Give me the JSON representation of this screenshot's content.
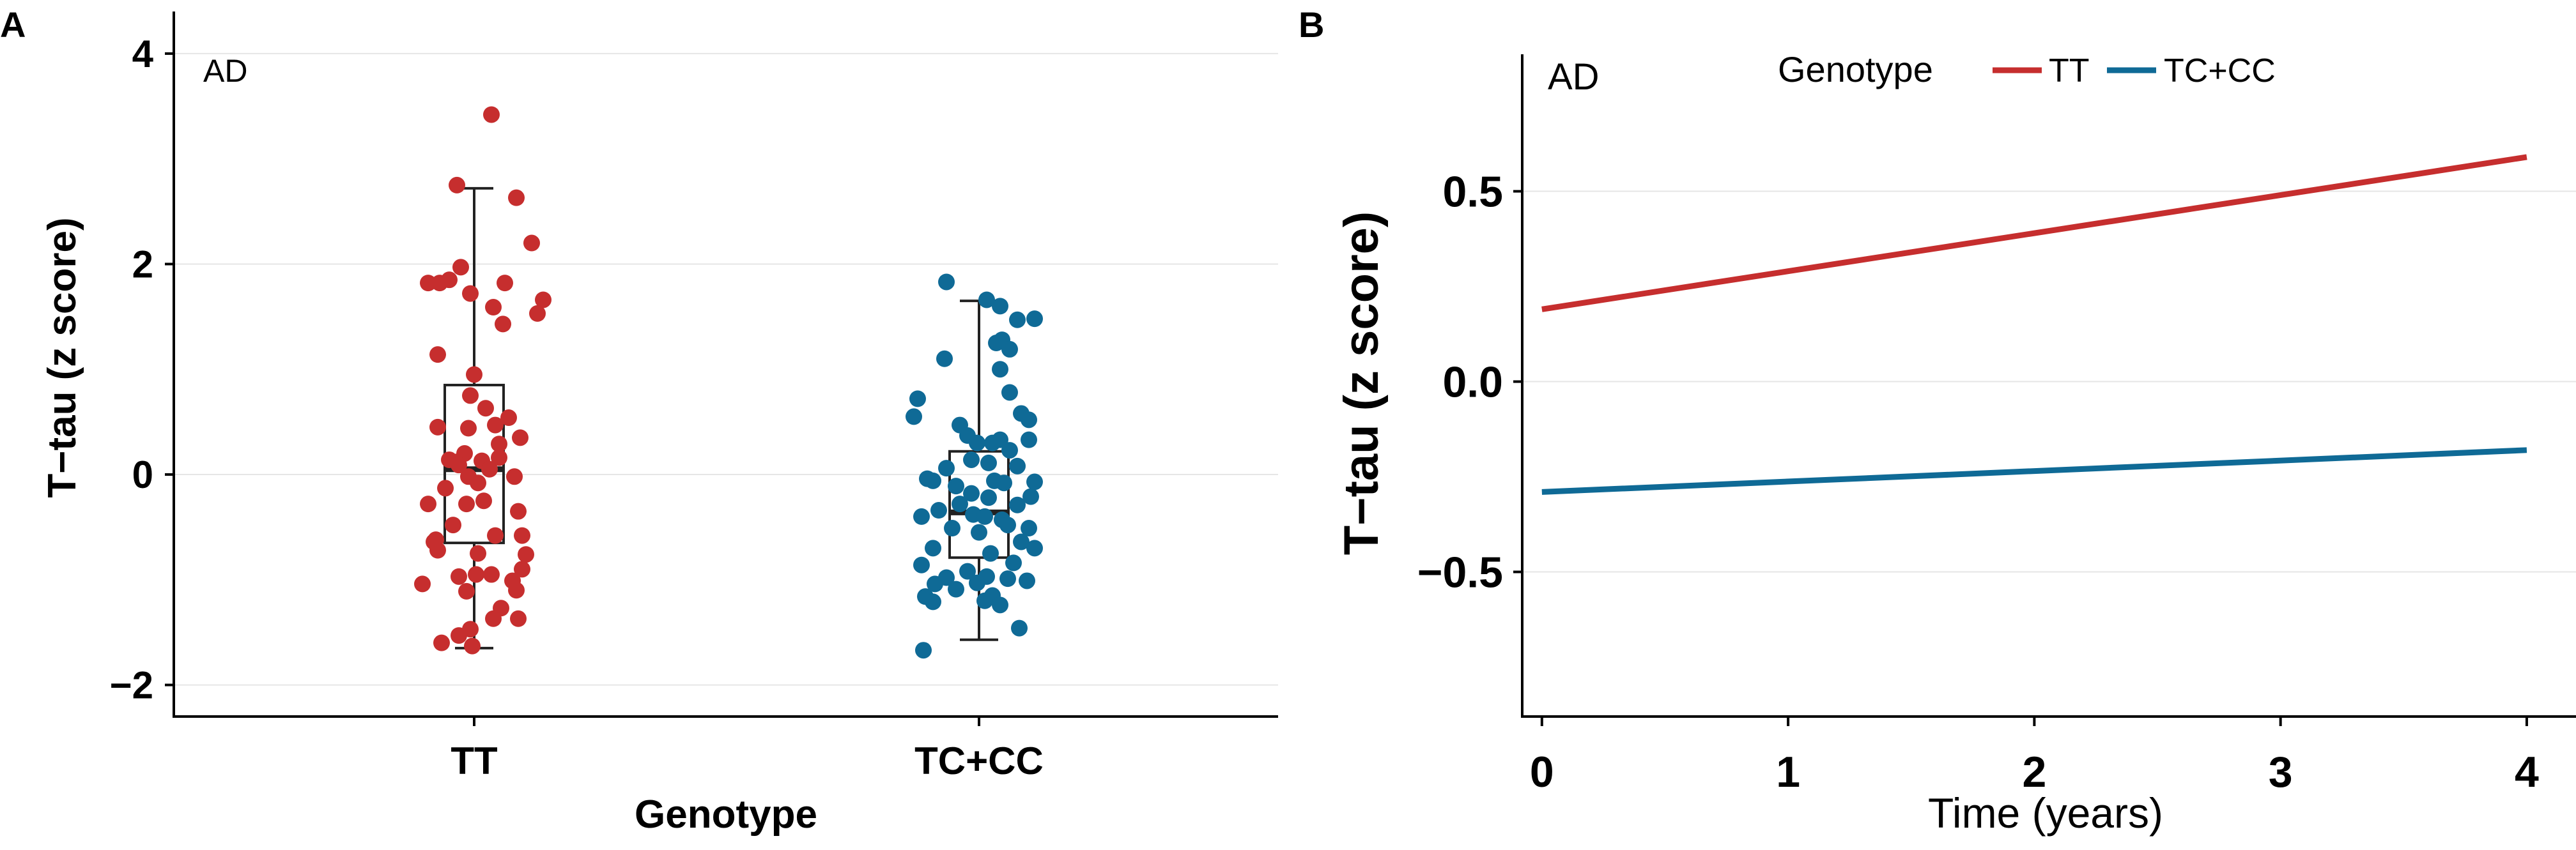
{
  "panel_a": {
    "letter": "A",
    "tag": "AD",
    "chart_data": {
      "type": "box-jitter",
      "xlabel": "Genotype",
      "ylabel": "T−tau (z score)",
      "ylim": [
        -2.3,
        4.4
      ],
      "yticks": [
        -2,
        0,
        2,
        4
      ],
      "ytick_labels": [
        "−2",
        "0",
        "2",
        "4"
      ],
      "grid": true,
      "categories": [
        "TT",
        "TC+CC"
      ],
      "groups": [
        {
          "name": "TT",
          "color": "#c62e2e",
          "box": {
            "min": -1.65,
            "q1": -0.65,
            "median": 0.05,
            "q3": 0.85,
            "max": 2.72
          },
          "points": [
            {
              "j": -0.09,
              "y": 2.75
            },
            {
              "j": 0.09,
              "y": 3.42
            },
            {
              "j": 0.22,
              "y": 2.63
            },
            {
              "j": -0.13,
              "y": 1.85
            },
            {
              "j": -0.02,
              "y": 1.72
            },
            {
              "j": 0.1,
              "y": 1.59
            },
            {
              "j": -0.24,
              "y": 1.82
            },
            {
              "j": -0.18,
              "y": 1.82
            },
            {
              "j": 0.16,
              "y": 1.82
            },
            {
              "j": 0.3,
              "y": 2.2
            },
            {
              "j": 0.36,
              "y": 1.66
            },
            {
              "j": 0.33,
              "y": 1.53
            },
            {
              "j": 0.15,
              "y": 1.43
            },
            {
              "j": -0.07,
              "y": 1.97
            },
            {
              "j": -0.19,
              "y": 1.14
            },
            {
              "j": 0.0,
              "y": 0.95
            },
            {
              "j": -0.02,
              "y": 0.75
            },
            {
              "j": 0.06,
              "y": 0.63
            },
            {
              "j": 0.11,
              "y": 0.47
            },
            {
              "j": 0.18,
              "y": 0.54
            },
            {
              "j": -0.19,
              "y": 0.45
            },
            {
              "j": -0.03,
              "y": 0.44
            },
            {
              "j": 0.24,
              "y": 0.35
            },
            {
              "j": 0.13,
              "y": 0.29
            },
            {
              "j": -0.13,
              "y": 0.14
            },
            {
              "j": -0.09,
              "y": 0.12
            },
            {
              "j": -0.05,
              "y": 0.2
            },
            {
              "j": 0.04,
              "y": 0.13
            },
            {
              "j": 0.08,
              "y": 0.05
            },
            {
              "j": 0.02,
              "y": -0.08
            },
            {
              "j": -0.03,
              "y": -0.02
            },
            {
              "j": -0.08,
              "y": 0.09
            },
            {
              "j": 0.13,
              "y": 0.16
            },
            {
              "j": -0.15,
              "y": -0.13
            },
            {
              "j": 0.21,
              "y": -0.02
            },
            {
              "j": -0.04,
              "y": -0.28
            },
            {
              "j": 0.05,
              "y": -0.25
            },
            {
              "j": 0.23,
              "y": -0.35
            },
            {
              "j": -0.24,
              "y": -0.28
            },
            {
              "j": -0.11,
              "y": -0.48
            },
            {
              "j": 0.11,
              "y": -0.58
            },
            {
              "j": 0.25,
              "y": -0.58
            },
            {
              "j": -0.2,
              "y": -0.62
            },
            {
              "j": -0.19,
              "y": -0.72
            },
            {
              "j": 0.27,
              "y": -0.76
            },
            {
              "j": 0.02,
              "y": -0.75
            },
            {
              "j": 0.25,
              "y": -0.9
            },
            {
              "j": -0.08,
              "y": -0.97
            },
            {
              "j": 0.01,
              "y": -0.95
            },
            {
              "j": 0.09,
              "y": -0.95
            },
            {
              "j": -0.04,
              "y": -1.11
            },
            {
              "j": 0.22,
              "y": -1.1
            },
            {
              "j": -0.27,
              "y": -1.04
            },
            {
              "j": 0.14,
              "y": -1.27
            },
            {
              "j": 0.1,
              "y": -1.37
            },
            {
              "j": 0.23,
              "y": -1.37
            },
            {
              "j": -0.02,
              "y": -1.47
            },
            {
              "j": -0.08,
              "y": -1.53
            },
            {
              "j": -0.17,
              "y": -1.6
            },
            {
              "j": -0.01,
              "y": -1.63
            },
            {
              "j": -0.21,
              "y": -0.64
            },
            {
              "j": 0.2,
              "y": -1.01
            }
          ]
        },
        {
          "name": "TC+CC",
          "color": "#0f6a96",
          "box": {
            "min": -1.57,
            "q1": -0.79,
            "median": -0.36,
            "q3": 0.22,
            "max": 1.65
          },
          "points": [
            {
              "j": -0.17,
              "y": 1.83
            },
            {
              "j": 0.04,
              "y": 1.66
            },
            {
              "j": 0.11,
              "y": 1.6
            },
            {
              "j": 0.2,
              "y": 1.47
            },
            {
              "j": 0.29,
              "y": 1.48
            },
            {
              "j": 0.09,
              "y": 1.25
            },
            {
              "j": 0.12,
              "y": 1.28
            },
            {
              "j": 0.16,
              "y": 1.19
            },
            {
              "j": -0.18,
              "y": 1.1
            },
            {
              "j": 0.11,
              "y": 1.0
            },
            {
              "j": 0.16,
              "y": 0.78
            },
            {
              "j": -0.32,
              "y": 0.72
            },
            {
              "j": -0.34,
              "y": 0.55
            },
            {
              "j": 0.22,
              "y": 0.58
            },
            {
              "j": 0.26,
              "y": 0.52
            },
            {
              "j": -0.1,
              "y": 0.47
            },
            {
              "j": -0.06,
              "y": 0.37
            },
            {
              "j": 0.07,
              "y": 0.3
            },
            {
              "j": 0.11,
              "y": 0.33
            },
            {
              "j": -0.01,
              "y": 0.3
            },
            {
              "j": 0.16,
              "y": 0.23
            },
            {
              "j": 0.26,
              "y": 0.33
            },
            {
              "j": -0.04,
              "y": 0.14
            },
            {
              "j": 0.05,
              "y": 0.11
            },
            {
              "j": 0.2,
              "y": 0.08
            },
            {
              "j": -0.17,
              "y": 0.06
            },
            {
              "j": 0.29,
              "y": -0.07
            },
            {
              "j": -0.27,
              "y": -0.04
            },
            {
              "j": -0.24,
              "y": -0.06
            },
            {
              "j": 0.08,
              "y": -0.06
            },
            {
              "j": 0.13,
              "y": -0.08
            },
            {
              "j": -0.12,
              "y": -0.11
            },
            {
              "j": 0.27,
              "y": -0.21
            },
            {
              "j": -0.04,
              "y": -0.18
            },
            {
              "j": 0.05,
              "y": -0.22
            },
            {
              "j": 0.2,
              "y": -0.29
            },
            {
              "j": -0.1,
              "y": -0.28
            },
            {
              "j": -0.21,
              "y": -0.34
            },
            {
              "j": -0.3,
              "y": -0.4
            },
            {
              "j": -0.03,
              "y": -0.38
            },
            {
              "j": 0.03,
              "y": -0.4
            },
            {
              "j": 0.12,
              "y": -0.43
            },
            {
              "j": 0.15,
              "y": -0.48
            },
            {
              "j": -0.14,
              "y": -0.51
            },
            {
              "j": 0.0,
              "y": -0.55
            },
            {
              "j": 0.26,
              "y": -0.51
            },
            {
              "j": 0.22,
              "y": -0.64
            },
            {
              "j": 0.29,
              "y": -0.7
            },
            {
              "j": -0.24,
              "y": -0.7
            },
            {
              "j": -0.3,
              "y": -0.86
            },
            {
              "j": 0.06,
              "y": -0.75
            },
            {
              "j": 0.18,
              "y": -0.84
            },
            {
              "j": -0.06,
              "y": -0.92
            },
            {
              "j": 0.04,
              "y": -0.97
            },
            {
              "j": -0.17,
              "y": -0.98
            },
            {
              "j": 0.15,
              "y": -0.99
            },
            {
              "j": 0.25,
              "y": -1.01
            },
            {
              "j": -0.23,
              "y": -1.04
            },
            {
              "j": -0.01,
              "y": -1.03
            },
            {
              "j": -0.12,
              "y": -1.09
            },
            {
              "j": 0.07,
              "y": -1.15
            },
            {
              "j": -0.28,
              "y": -1.16
            },
            {
              "j": -0.24,
              "y": -1.21
            },
            {
              "j": 0.03,
              "y": -1.2
            },
            {
              "j": 0.11,
              "y": -1.24
            },
            {
              "j": 0.21,
              "y": -1.46
            },
            {
              "j": -0.29,
              "y": -1.67
            }
          ]
        }
      ]
    }
  },
  "panel_b": {
    "letter": "B",
    "tag": "AD",
    "legend_title": "Genotype",
    "chart_data": {
      "type": "line",
      "xlabel": "Time (years)",
      "ylabel": "T−tau (z score)",
      "xlim": [
        -0.08,
        4.2
      ],
      "ylim": [
        -0.88,
        0.86
      ],
      "xticks": [
        0,
        1,
        2,
        3,
        4
      ],
      "xtick_labels": [
        "0",
        "1",
        "2",
        "3",
        "4"
      ],
      "yticks": [
        -0.5,
        0.0,
        0.5
      ],
      "ytick_labels": [
        "−0.5",
        "0.0",
        "0.5"
      ],
      "grid": true,
      "legend_position": "top",
      "series": [
        {
          "name": "TT",
          "color": "#c62e2e",
          "x": [
            0,
            4
          ],
          "y": [
            0.19,
            0.59
          ]
        },
        {
          "name": "TC+CC",
          "color": "#0f6a96",
          "x": [
            0,
            4
          ],
          "y": [
            -0.29,
            -0.18
          ]
        }
      ]
    }
  }
}
